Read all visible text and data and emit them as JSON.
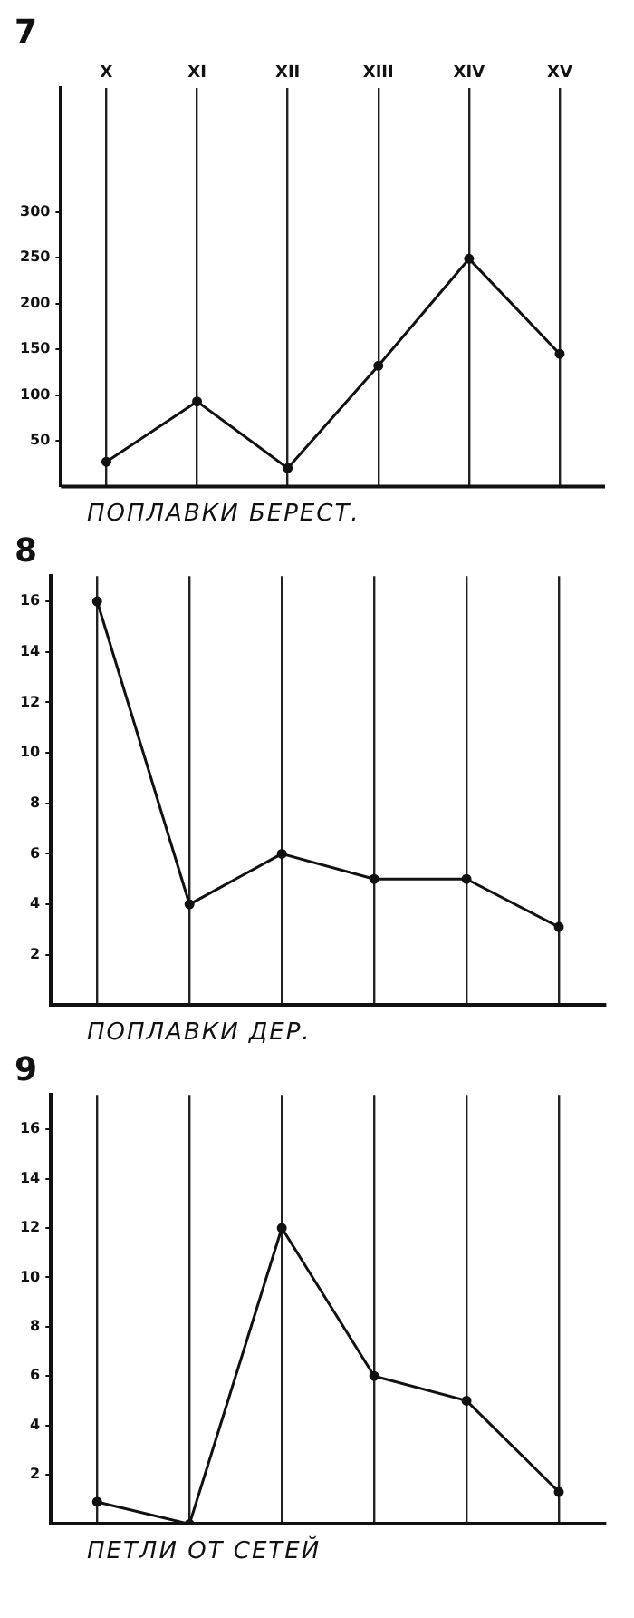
{
  "chart_data": [
    {
      "type": "line",
      "title": "7",
      "xlabel": "ПОПЛАВКИ БЕРЕСТ.",
      "categories": [
        "X",
        "XI",
        "XII",
        "XIII",
        "XIV",
        "XV"
      ],
      "values": [
        27,
        93,
        20,
        132,
        249,
        145
      ],
      "color": "#111111",
      "ylim": [
        0,
        436
      ],
      "yticks": [
        50,
        100,
        150,
        200,
        250,
        300
      ],
      "grid": "x",
      "marker": "circle",
      "line_style": "solid",
      "legend": false
    },
    {
      "type": "line",
      "title": "8",
      "xlabel": "ПОПЛАВКИ ДЕР.",
      "categories": [
        null,
        null,
        null,
        null,
        null,
        null
      ],
      "values": [
        16,
        4,
        6,
        5,
        5,
        3.1
      ],
      "color": "#111111",
      "ylim": [
        0,
        17
      ],
      "yticks": [
        2,
        4,
        6,
        8,
        10,
        12,
        14,
        16
      ],
      "grid": "x",
      "marker": "circle",
      "line_style": "solid",
      "legend": false,
      "tick_labels": "y"
    },
    {
      "type": "line",
      "title": "9",
      "xlabel": "ПЕТЛИ ОТ СЕТЕЙ",
      "categories": [
        null,
        null,
        null,
        null,
        null,
        null
      ],
      "values": [
        0.9,
        0,
        12,
        6,
        5,
        1.3
      ],
      "color": "#111111",
      "ylim": [
        0,
        17.4
      ],
      "yticks": [
        2,
        4,
        6,
        8,
        10,
        12,
        14,
        16
      ],
      "grid": "x",
      "marker": "circle",
      "line_style": "solid",
      "legend": false,
      "tick_labels": "y"
    }
  ]
}
